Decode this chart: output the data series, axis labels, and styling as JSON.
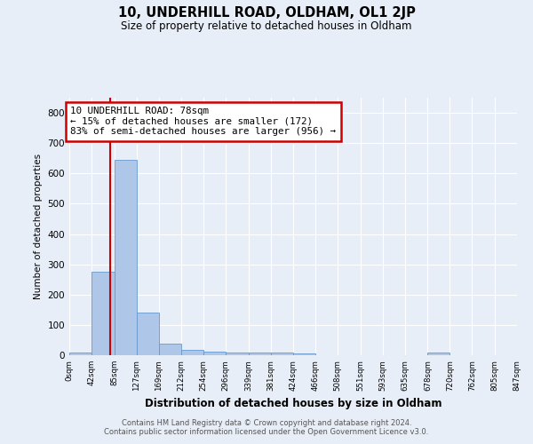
{
  "title": "10, UNDERHILL ROAD, OLDHAM, OL1 2JP",
  "subtitle": "Size of property relative to detached houses in Oldham",
  "xlabel": "Distribution of detached houses by size in Oldham",
  "ylabel": "Number of detached properties",
  "footnote1": "Contains HM Land Registry data © Crown copyright and database right 2024.",
  "footnote2": "Contains public sector information licensed under the Open Government Licence v3.0.",
  "bar_values": [
    8,
    275,
    645,
    140,
    38,
    18,
    12,
    10,
    10,
    10,
    5,
    0,
    0,
    0,
    0,
    0,
    8,
    0,
    0,
    0
  ],
  "bin_edges": [
    0,
    42,
    85,
    127,
    169,
    212,
    254,
    296,
    339,
    381,
    424,
    466,
    508,
    551,
    593,
    635,
    678,
    720,
    762,
    805,
    847
  ],
  "tick_labels": [
    "0sqm",
    "42sqm",
    "85sqm",
    "127sqm",
    "169sqm",
    "212sqm",
    "254sqm",
    "296sqm",
    "339sqm",
    "381sqm",
    "424sqm",
    "466sqm",
    "508sqm",
    "551sqm",
    "593sqm",
    "635sqm",
    "678sqm",
    "720sqm",
    "762sqm",
    "805sqm",
    "847sqm"
  ],
  "bar_color": "#aec6e8",
  "bar_edge_color": "#6699cc",
  "red_line_x": 78,
  "annotation_line1": "10 UNDERHILL ROAD: 78sqm",
  "annotation_line2": "← 15% of detached houses are smaller (172)",
  "annotation_line3": "83% of semi-detached houses are larger (956) →",
  "annotation_box_color": "white",
  "annotation_box_edge": "#cc0000",
  "ylim": [
    0,
    850
  ],
  "yticks": [
    0,
    100,
    200,
    300,
    400,
    500,
    600,
    700,
    800
  ],
  "background_color": "#e8eef8",
  "plot_bg_color": "#e8eef8",
  "grid_color": "white"
}
